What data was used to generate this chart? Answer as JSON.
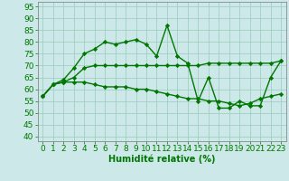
{
  "xlabel": "Humidité relative (%)",
  "xlim": [
    -0.5,
    23.5
  ],
  "ylim": [
    38,
    97
  ],
  "yticks": [
    40,
    45,
    50,
    55,
    60,
    65,
    70,
    75,
    80,
    85,
    90,
    95
  ],
  "xticks": [
    0,
    1,
    2,
    3,
    4,
    5,
    6,
    7,
    8,
    9,
    10,
    11,
    12,
    13,
    14,
    15,
    16,
    17,
    18,
    19,
    20,
    21,
    22,
    23
  ],
  "background_color": "#cce8e8",
  "grid_color": "#99ccbb",
  "line_color": "#007700",
  "lines": [
    [
      57,
      62,
      64,
      69,
      75,
      77,
      80,
      79,
      80,
      81,
      79,
      74,
      87,
      74,
      71,
      55,
      65,
      52,
      52,
      55,
      53,
      53,
      65,
      72
    ],
    [
      57,
      62,
      63,
      63,
      63,
      62,
      61,
      61,
      61,
      60,
      60,
      59,
      58,
      57,
      56,
      56,
      55,
      55,
      54,
      53,
      54,
      56,
      57,
      58
    ],
    [
      57,
      62,
      63,
      65,
      69,
      70,
      70,
      70,
      70,
      70,
      70,
      70,
      70,
      70,
      70,
      70,
      71,
      71,
      71,
      71,
      71,
      71,
      71,
      72
    ]
  ],
  "marker": "D",
  "marker_size": 2.2,
  "line_width": 1.0,
  "font_color": "#007700",
  "xlabel_fontsize": 7,
  "tick_fontsize": 6.5
}
